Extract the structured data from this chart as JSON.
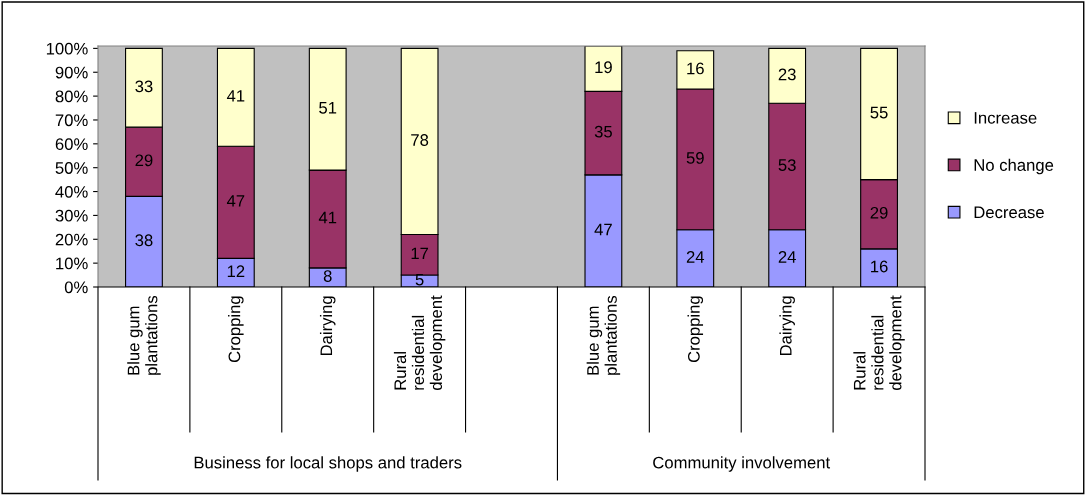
{
  "chart_data": {
    "type": "bar",
    "stacked": true,
    "categories": [
      "Blue gum\nplantations",
      "Cropping",
      "Dairying",
      "Rural\nresidential\ndevelopment",
      null,
      "Blue gum\nplantations",
      "Cropping",
      "Dairying",
      "Rural\nresidential\ndevelopment"
    ],
    "series": [
      {
        "name": "Decrease",
        "color": "#9999ff",
        "values": [
          38,
          12,
          8,
          5,
          null,
          47,
          24,
          24,
          16
        ]
      },
      {
        "name": "No change",
        "color": "#993366",
        "values": [
          29,
          47,
          41,
          17,
          null,
          35,
          59,
          53,
          29
        ]
      },
      {
        "name": "Increase",
        "color": "#ffffcc",
        "values": [
          33,
          41,
          51,
          78,
          null,
          19,
          16,
          23,
          55
        ]
      }
    ],
    "ylim": [
      0,
      101
    ],
    "yticks": [
      {
        "value": 0,
        "label": "0%"
      },
      {
        "value": 10,
        "label": "10%"
      },
      {
        "value": 20,
        "label": "20%"
      },
      {
        "value": 30,
        "label": "30%"
      },
      {
        "value": 40,
        "label": "40%"
      },
      {
        "value": 50,
        "label": "50%"
      },
      {
        "value": 60,
        "label": "60%"
      },
      {
        "value": 70,
        "label": "70%"
      },
      {
        "value": 80,
        "label": "80%"
      },
      {
        "value": 90,
        "label": "90%"
      },
      {
        "value": 100,
        "label": "100%"
      }
    ],
    "annotations": [
      "Business for local shops and traders",
      "Community involvement"
    ],
    "data_labels": true,
    "grid": false,
    "legend": "right"
  }
}
